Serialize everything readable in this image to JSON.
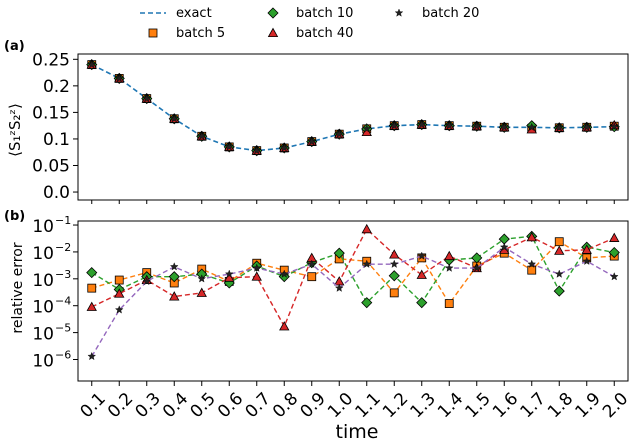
{
  "legend": {
    "placement": "top",
    "items": [
      {
        "key": "exact",
        "label": "exact",
        "color": "#1f77b4",
        "marker": "line"
      },
      {
        "key": "b5",
        "label": "batch 5",
        "color": "#ff7f0e",
        "marker": "square"
      },
      {
        "key": "b10",
        "label": "batch 10",
        "color": "#2ca02c",
        "marker": "diamond"
      },
      {
        "key": "b40",
        "label": "batch 40",
        "color": "#d62728",
        "marker": "triangle"
      },
      {
        "key": "b20",
        "label": "batch 20",
        "color": "#9467bd",
        "marker": "star"
      }
    ]
  },
  "chart_data": [
    {
      "type": "line",
      "panel_label": "(a)",
      "ylabel": "⟨S₁ᶻS₂ᶻ⟩",
      "ylim": [
        -0.015,
        0.26
      ],
      "yticks": [
        "0.0",
        "0.05",
        "0.1",
        "0.15",
        "0.2",
        "0.25"
      ],
      "x": [
        0.1,
        0.2,
        0.3,
        0.4,
        0.5,
        0.6,
        0.7,
        0.8,
        0.9,
        1.0,
        1.1,
        1.2,
        1.3,
        1.4,
        1.5,
        1.6,
        1.7,
        1.8,
        1.9,
        2.0
      ],
      "series": [
        {
          "name": "exact",
          "values": [
            0.24,
            0.214,
            0.176,
            0.138,
            0.105,
            0.085,
            0.078,
            0.083,
            0.095,
            0.109,
            0.119,
            0.125,
            0.127,
            0.125,
            0.124,
            0.122,
            0.122,
            0.121,
            0.122,
            0.123
          ]
        },
        {
          "name": "batch 5",
          "values": [
            0.24,
            0.214,
            0.176,
            0.138,
            0.105,
            0.085,
            0.078,
            0.083,
            0.095,
            0.109,
            0.119,
            0.125,
            0.127,
            0.125,
            0.124,
            0.122,
            0.12,
            0.121,
            0.122,
            0.124
          ]
        },
        {
          "name": "batch 10",
          "values": [
            0.24,
            0.214,
            0.176,
            0.138,
            0.105,
            0.085,
            0.078,
            0.083,
            0.095,
            0.109,
            0.119,
            0.125,
            0.127,
            0.125,
            0.124,
            0.122,
            0.125,
            0.121,
            0.122,
            0.123
          ]
        },
        {
          "name": "batch 40",
          "values": [
            0.24,
            0.214,
            0.176,
            0.138,
            0.105,
            0.085,
            0.078,
            0.083,
            0.095,
            0.109,
            0.113,
            0.125,
            0.127,
            0.125,
            0.124,
            0.122,
            0.118,
            0.121,
            0.122,
            0.126
          ]
        },
        {
          "name": "batch 20",
          "values": [
            0.24,
            0.214,
            0.176,
            0.138,
            0.105,
            0.085,
            0.078,
            0.083,
            0.095,
            0.109,
            0.119,
            0.125,
            0.127,
            0.125,
            0.124,
            0.122,
            0.122,
            0.121,
            0.122,
            0.123
          ]
        }
      ]
    },
    {
      "type": "line",
      "scale": "log",
      "panel_label": "(b)",
      "ylabel": "relative error",
      "xlabel": "time",
      "ylim_log10": [
        -6.8,
        -0.85
      ],
      "yticks": [
        {
          "base": "10",
          "exp": "−6",
          "log": -6
        },
        {
          "base": "10",
          "exp": "−5",
          "log": -5
        },
        {
          "base": "10",
          "exp": "−4",
          "log": -4
        },
        {
          "base": "10",
          "exp": "−3",
          "log": -3
        },
        {
          "base": "10",
          "exp": "−2",
          "log": -2
        },
        {
          "base": "10",
          "exp": "−1",
          "log": -1
        }
      ],
      "x": [
        0.1,
        0.2,
        0.3,
        0.4,
        0.5,
        0.6,
        0.7,
        0.8,
        0.9,
        1.0,
        1.1,
        1.2,
        1.3,
        1.4,
        1.5,
        1.6,
        1.7,
        1.8,
        1.9,
        2.0
      ],
      "xticklabels": [
        "0.1",
        "0.2",
        "0.3",
        "0.4",
        "0.5",
        "0.6",
        "0.7",
        "0.8",
        "0.9",
        "1.0",
        "1.1",
        "1.2",
        "1.3",
        "1.4",
        "1.5",
        "1.6",
        "1.7",
        "1.8",
        "1.9",
        "2.0"
      ],
      "series": [
        {
          "name": "batch 5",
          "values": [
            0.00045,
            0.0009,
            0.0017,
            0.0007,
            0.0023,
            0.0008,
            0.0038,
            0.0021,
            0.0012,
            0.0055,
            0.0045,
            0.0003,
            0.006,
            0.00012,
            0.003,
            0.009,
            0.0021,
            0.024,
            0.006,
            0.007
          ]
        },
        {
          "name": "batch 10",
          "values": [
            0.0017,
            0.0004,
            0.0012,
            0.0012,
            0.0015,
            0.0007,
            0.003,
            0.0012,
            0.004,
            0.009,
            0.00013,
            0.0013,
            0.00013,
            0.005,
            0.006,
            0.03,
            0.038,
            0.00035,
            0.015,
            0.0095
          ]
        },
        {
          "name": "batch 40",
          "values": [
            9e-05,
            0.00028,
            0.0009,
            0.00022,
            0.0003,
            0.0011,
            0.0012,
            1.7e-05,
            0.006,
            0.0008,
            0.07,
            0.008,
            0.0014,
            0.007,
            0.0025,
            0.012,
            0.035,
            0.011,
            0.012,
            0.033
          ]
        },
        {
          "name": "batch 20",
          "values": [
            1.3e-06,
            7e-05,
            0.0008,
            0.0028,
            0.001,
            0.0015,
            0.0025,
            0.0015,
            0.0035,
            0.00045,
            0.0035,
            0.0035,
            0.007,
            0.0025,
            0.0025,
            0.015,
            0.0035,
            0.0015,
            0.0045,
            0.0012
          ]
        }
      ]
    }
  ]
}
